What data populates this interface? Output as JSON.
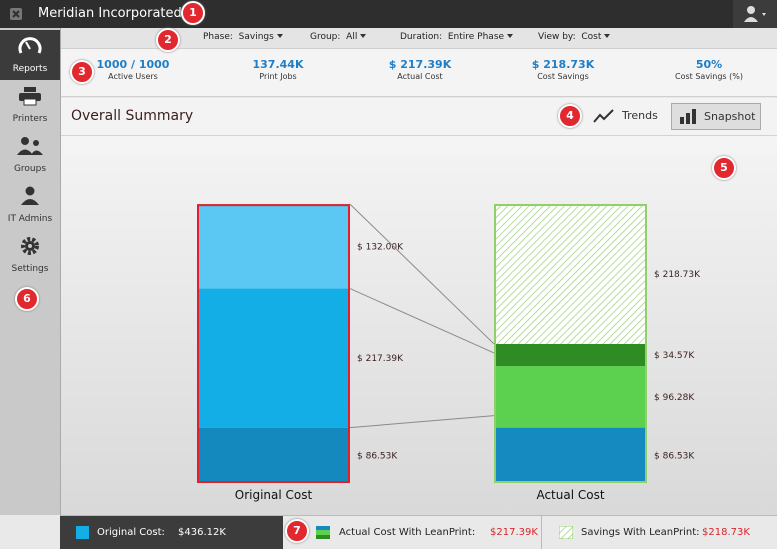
{
  "header": {
    "company": "Meridian Incorporated"
  },
  "sidebar": [
    {
      "label": "Reports"
    },
    {
      "label": "Printers"
    },
    {
      "label": "Groups"
    },
    {
      "label": "IT Admins"
    },
    {
      "label": "Settings"
    }
  ],
  "filters": [
    {
      "label": "Phase:",
      "value": "Savings"
    },
    {
      "label": "Group:",
      "value": "All"
    },
    {
      "label": "Duration:",
      "value": "Entire Phase"
    },
    {
      "label": "View by:",
      "value": "Cost"
    }
  ],
  "stats": [
    {
      "value": "1000 / 1000",
      "label": "Active Users"
    },
    {
      "value": "137.44K",
      "label": "Print Jobs"
    },
    {
      "value": "$ 217.39K",
      "label": "Actual Cost"
    },
    {
      "value": "$ 218.73K",
      "label": "Cost Savings"
    },
    {
      "value": "50%",
      "label": "Cost Savings (%)"
    }
  ],
  "summary": {
    "title": "Overall Summary",
    "buttons": [
      "Trends",
      "Snapshot"
    ]
  },
  "badges": [
    "1",
    "2",
    "3",
    "4",
    "5",
    "6",
    "7"
  ],
  "legend": [
    {
      "label": "Original Cost:",
      "value": "$436.12K"
    },
    {
      "label": "Actual Cost With LeanPrint:",
      "value": "$217.39K"
    },
    {
      "label": "Savings With LeanPrint:",
      "value": "$218.73K"
    }
  ],
  "chart_data": {
    "type": "stacked_bar",
    "categories": [
      "Original Cost",
      "Actual Cost"
    ],
    "stacks": [
      {
        "values": [
          86.53,
          217.39,
          132.0
        ],
        "value_labels": [
          "$ 86.53K",
          "$ 217.39K",
          "$ 132.00K"
        ],
        "colors": [
          "#1389bd",
          "#14aee6",
          "#5bc8f4"
        ],
        "hatched": [
          false,
          false,
          false
        ],
        "border_color": "#e3202a"
      },
      {
        "values": [
          86.53,
          96.28,
          34.57,
          218.73
        ],
        "value_labels": [
          "$ 86.53K",
          "$ 96.28K",
          "$ 34.57K",
          "$ 218.73K"
        ],
        "colors": [
          "#148ac1",
          "#5cd150",
          "#2f8b23",
          "#8fd06a"
        ],
        "hatched": [
          false,
          false,
          false,
          true
        ],
        "border_color": "#8fd06a"
      }
    ]
  }
}
